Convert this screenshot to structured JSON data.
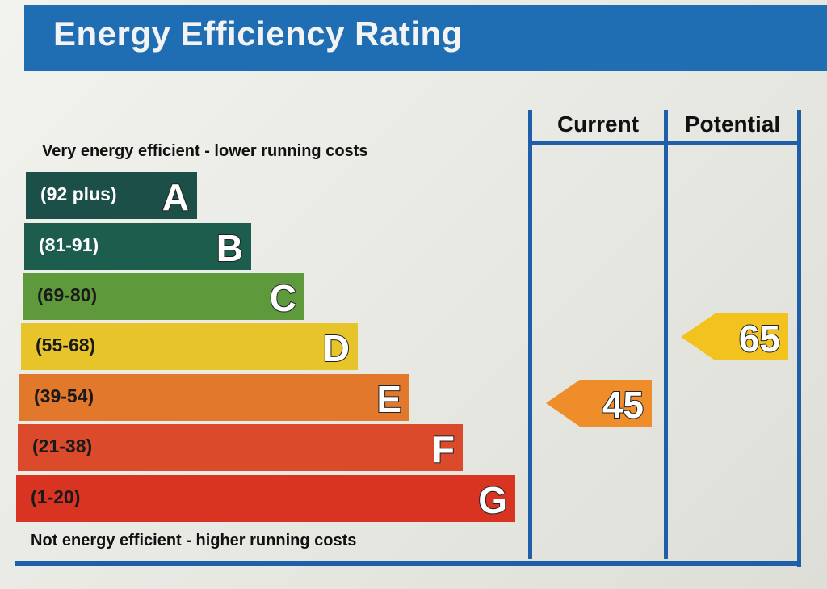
{
  "title": "Energy Efficiency Rating",
  "top_caption": "Very energy efficient - lower running costs",
  "bottom_caption": "Not energy efficient - higher running costs",
  "columns": {
    "current": "Current",
    "potential": "Potential"
  },
  "chart_data": {
    "type": "bar",
    "title": "Energy Efficiency Rating",
    "bands": [
      {
        "range": "(92 plus)",
        "letter": "A",
        "color": "#1c4f48",
        "range_color": "#ffffff"
      },
      {
        "range": "(81-91)",
        "letter": "B",
        "color": "#1d5d4d",
        "range_color": "#ffffff"
      },
      {
        "range": "(69-80)",
        "letter": "C",
        "color": "#5e9a3c",
        "range_color": "#1a1a1a"
      },
      {
        "range": "(55-68)",
        "letter": "D",
        "color": "#e6c42a",
        "range_color": "#1a1a1a"
      },
      {
        "range": "(39-54)",
        "letter": "E",
        "color": "#e2782c",
        "range_color": "#1a1a1a"
      },
      {
        "range": "(21-38)",
        "letter": "F",
        "color": "#dc4a2c",
        "range_color": "#1a1a1a"
      },
      {
        "range": "(1-20)",
        "letter": "G",
        "color": "#d93422",
        "range_color": "#1a1a1a"
      }
    ],
    "current": {
      "value": "45",
      "band": "E",
      "color": "#ef8d2a"
    },
    "potential": {
      "value": "65",
      "band": "D",
      "color": "#f2c21e"
    }
  }
}
